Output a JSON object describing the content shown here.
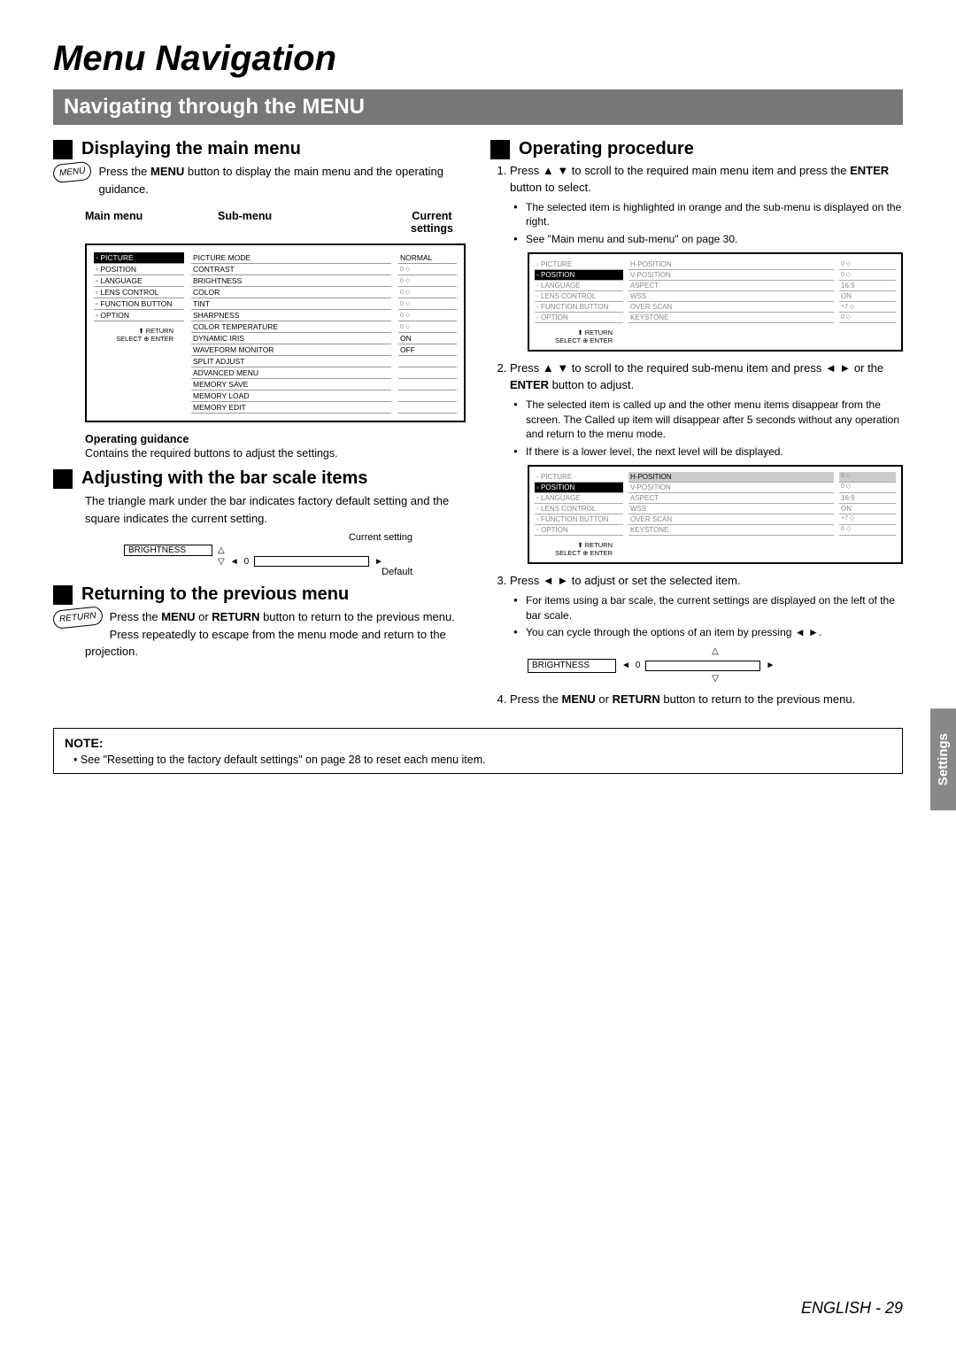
{
  "title": "Menu Navigation",
  "section": "Navigating through the MENU",
  "left": {
    "h1": "Displaying the main menu",
    "badge1": "MENU",
    "p1a": "Press the ",
    "p1b": "MENU",
    "p1c": " button to display the main menu and the operating guidance.",
    "lbl_main": "Main menu",
    "lbl_sub": "Sub-menu",
    "lbl_cur": "Current settings",
    "main_items": [
      "PICTURE",
      "POSITION",
      "LANGUAGE",
      "LENS CONTROL",
      "FUNCTION BUTTON",
      "OPTION"
    ],
    "sub_items": [
      {
        "n": "PICTURE MODE",
        "v": "NORMAL"
      },
      {
        "n": "CONTRAST",
        "v": "0",
        "bar": true
      },
      {
        "n": "BRIGHTNESS",
        "v": "0",
        "bar": true
      },
      {
        "n": "COLOR",
        "v": "0",
        "bar": true
      },
      {
        "n": "TINT",
        "v": "0",
        "bar": true
      },
      {
        "n": "SHARPNESS",
        "v": "0",
        "bar": true
      },
      {
        "n": "COLOR TEMPERATURE",
        "v": "0",
        "bar": true
      },
      {
        "n": "DYNAMIC IRIS",
        "v": "ON"
      },
      {
        "n": "WAVEFORM MONITOR",
        "v": "OFF"
      },
      {
        "n": "SPLIT ADJUST",
        "v": ""
      },
      {
        "n": "ADVANCED MENU",
        "v": ""
      },
      {
        "n": "MEMORY SAVE",
        "v": ""
      },
      {
        "n": "MEMORY LOAD",
        "v": ""
      },
      {
        "n": "MEMORY EDIT",
        "v": ""
      }
    ],
    "nav_return": "RETURN",
    "nav_select": "SELECT",
    "nav_enter": "ENTER",
    "og": "Operating guidance",
    "og_desc": "Contains the required buttons to adjust the settings.",
    "h2": "Adjusting with the bar scale items",
    "p2": "The triangle mark under the bar indicates factory default setting and the square indicates the current setting.",
    "bar_cur": "Current setting",
    "bar_name": "BRIGHTNESS",
    "bar_val": "0",
    "bar_def": "Default",
    "h3": "Returning to the previous menu",
    "badge2": "RETURN",
    "p3a": "Press the ",
    "p3b": "MENU",
    "p3c": " or ",
    "p3d": "RETURN",
    "p3e": " button to return to the previous menu. Press repeatedly to escape from the menu mode and return to the projection."
  },
  "right": {
    "h1": "Operating procedure",
    "s1a": "Press ▲ ▼ to scroll to the required main menu item and press the ",
    "s1b": "ENTER",
    "s1c": " button to select.",
    "s1_b1": "The selected item is highlighted in orange and the sub-menu is displayed on the right.",
    "s1_b2": "See \"Main menu and sub-menu\" on page 30.",
    "d1": {
      "main": [
        "PICTURE",
        "POSITION",
        "LANGUAGE",
        "LENS CONTROL",
        "FUNCTION BUTTON",
        "OPTION"
      ],
      "main_sel": 1,
      "sub": [
        {
          "n": "H-POSITION",
          "v": "0",
          "bar": true
        },
        {
          "n": "V-POSITION",
          "v": "0",
          "bar": true
        },
        {
          "n": "ASPECT",
          "v": "16:9"
        },
        {
          "n": "WSS",
          "v": "ON"
        },
        {
          "n": "OVER SCAN",
          "v": "+7",
          "bar": true
        },
        {
          "n": "KEYSTONE",
          "v": "0",
          "bar": true
        }
      ]
    },
    "s2a": "Press ▲ ▼ to scroll to the required sub-menu item and press ◄ ► or the ",
    "s2b": "ENTER",
    "s2c": " button to adjust.",
    "s2_b1": "The selected item is called up and the other menu items disappear from the screen. The Called up item will disappear after 5 seconds without any operation and return to the menu mode.",
    "s2_b2": "If there is a lower level, the next level will be displayed.",
    "d2": {
      "main": [
        "PICTURE",
        "POSITION",
        "LANGUAGE",
        "LENS CONTROL",
        "FUNCTION BUTTON",
        "OPTION"
      ],
      "main_sel": 1,
      "sub": [
        {
          "n": "H-POSITION",
          "v": "0",
          "bar": true,
          "hl": true
        },
        {
          "n": "V-POSITION",
          "v": "0",
          "bar": true
        },
        {
          "n": "ASPECT",
          "v": "16:9"
        },
        {
          "n": "WSS",
          "v": "ON"
        },
        {
          "n": "OVER SCAN",
          "v": "+7",
          "bar": true
        },
        {
          "n": "KEYSTONE",
          "v": "0",
          "bar": true
        }
      ]
    },
    "s3": "Press ◄ ► to adjust or set the selected item.",
    "s3_b1": "For items using a bar scale, the current settings are displayed on the left of the bar scale.",
    "s3_b2": "You can cycle through the options of an item by pressing ◄ ►.",
    "bar_name": "BRIGHTNESS",
    "bar_val": "0",
    "s4a": "Press the ",
    "s4b": "MENU",
    "s4c": " or ",
    "s4d": "RETURN",
    "s4e": " button to return to the previous menu."
  },
  "note_h": "NOTE:",
  "note_t": "See \"Resetting to the factory default settings\" on page 28 to reset each menu item.",
  "side": "Settings",
  "footer_lang": "ENGLISH",
  "footer_sep": " - ",
  "footer_page": "29"
}
